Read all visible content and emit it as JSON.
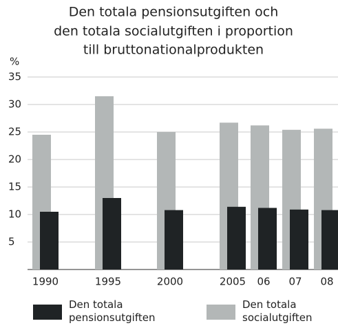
{
  "chart_data": {
    "type": "bar",
    "title": [
      "Den totala pensionsutgiften och",
      "den totala socialutgiften i proportion",
      "till bruttonationalprodukten"
    ],
    "ylabel": "%",
    "categories": [
      "1990",
      "1995",
      "2000",
      "2005",
      "06",
      "07",
      "08"
    ],
    "series": [
      {
        "name": "Den totala pensionsutgiften",
        "color": "#1f2325",
        "values": [
          10.5,
          13,
          10.8,
          11.4,
          11.2,
          10.9,
          10.8
        ]
      },
      {
        "name": "Den totala socialutgiften",
        "color": "#b3b7b7",
        "values": [
          24.5,
          31.5,
          25,
          26.7,
          26.2,
          25.4,
          25.6
        ]
      }
    ],
    "ylim": [
      0,
      35
    ],
    "yticks": [
      5,
      10,
      15,
      20,
      25,
      30,
      35
    ],
    "grid": true
  }
}
